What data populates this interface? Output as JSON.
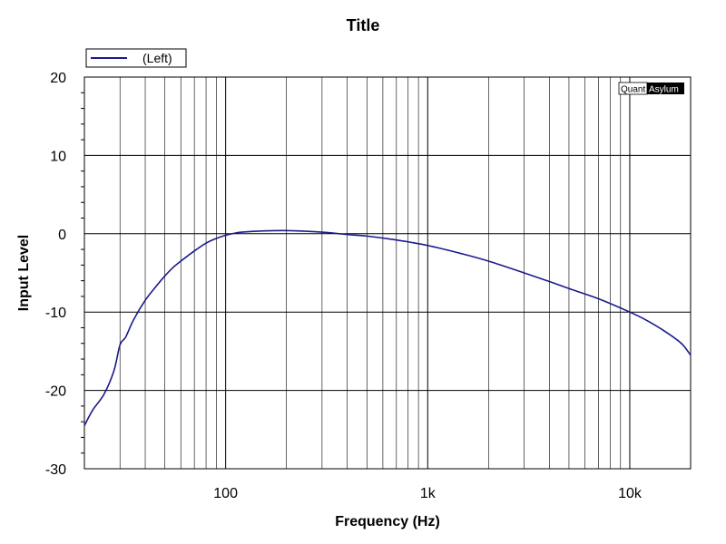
{
  "chart_data": {
    "type": "line",
    "title": "Title",
    "xlabel": "Frequency (Hz)",
    "ylabel": "Input Level",
    "xscale": "log",
    "xlim": [
      20,
      20000
    ],
    "ylim": [
      -30,
      20
    ],
    "x_major_ticks": [
      100,
      1000,
      10000
    ],
    "x_tick_labels": [
      "100",
      "1k",
      "10k"
    ],
    "y_ticks": [
      20,
      10,
      0,
      -10,
      -20,
      -30
    ],
    "y_tick_labels": [
      "20",
      "10",
      "0",
      "-10",
      "-20",
      "-30"
    ],
    "grid": true,
    "legend_position": "top-left",
    "watermark": {
      "part1": "Quant",
      "part2": "Asylum"
    },
    "colors": {
      "series": "#1a1a8c",
      "grid": "#000000",
      "plot_border": "#000000"
    },
    "series": [
      {
        "name": "(Left)",
        "x": [
          20,
          22,
          25,
          28,
          30,
          32,
          35,
          40,
          45,
          50,
          55,
          60,
          70,
          80,
          90,
          100,
          110,
          120,
          150,
          200,
          300,
          400,
          500,
          700,
          1000,
          1500,
          2000,
          3000,
          4000,
          5000,
          7000,
          10000,
          12000,
          15000,
          18000,
          20000
        ],
        "y": [
          -24.5,
          -22.5,
          -20.5,
          -17.5,
          -14.2,
          -13.2,
          -11,
          -8.5,
          -6.8,
          -5.4,
          -4.3,
          -3.5,
          -2.2,
          -1.2,
          -0.6,
          -0.2,
          0.05,
          0.2,
          0.35,
          0.4,
          0.2,
          -0.1,
          -0.3,
          -0.8,
          -1.5,
          -2.6,
          -3.5,
          -5,
          -6.1,
          -7,
          -8.3,
          -10,
          -11,
          -12.5,
          -14,
          -15.5
        ]
      }
    ]
  }
}
